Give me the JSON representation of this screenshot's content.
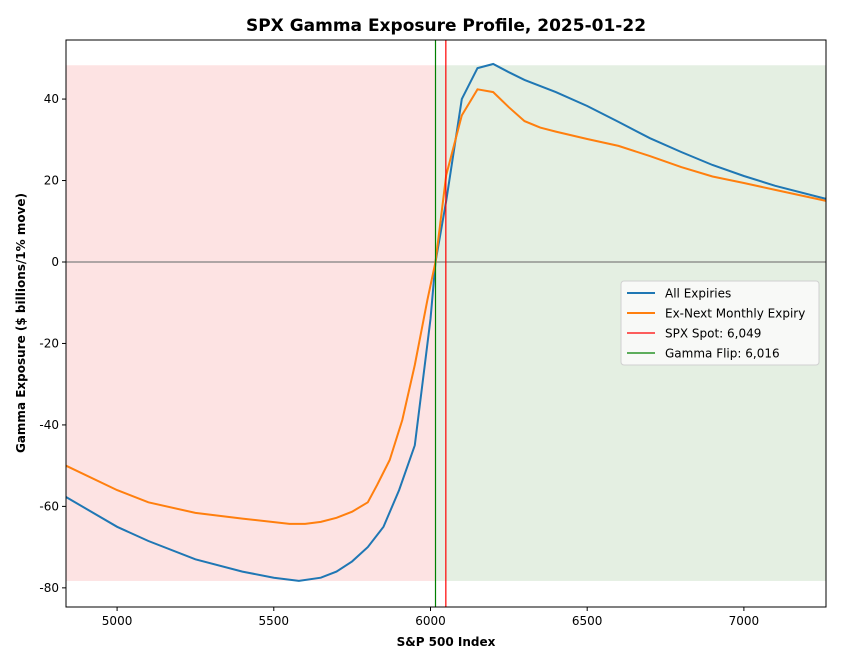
{
  "chart_data": {
    "type": "line",
    "title": "SPX Gamma Exposure Profile, 2025-01-22",
    "xlabel": "S&P 500 Index",
    "ylabel": "Gamma Exposure ($ billions/1% move)",
    "xlim": [
      4837,
      7262
    ],
    "ylim": [
      -84.7,
      54.5
    ],
    "xticks": [
      5000,
      5500,
      6000,
      6500,
      7000
    ],
    "yticks": [
      -80,
      -60,
      -40,
      -20,
      0,
      20,
      40
    ],
    "grid": false,
    "legend_position": "center-right",
    "shading": {
      "negative_region": {
        "x": [
          4837,
          6016
        ],
        "y": [
          -78.3,
          48.3
        ],
        "color": "#fde3e3"
      },
      "positive_region": {
        "x": [
          6016,
          7262
        ],
        "y": [
          -78.3,
          48.3
        ],
        "color": "#e4efe2"
      }
    },
    "series": [
      {
        "name": "All Expiries",
        "color": "#1f77b4",
        "x": [
          4837,
          5000,
          5100,
          5250,
          5400,
          5500,
          5580,
          5650,
          5700,
          5750,
          5800,
          5850,
          5900,
          5950,
          6000,
          6016,
          6050,
          6100,
          6150,
          6200,
          6250,
          6300,
          6400,
          6500,
          6600,
          6700,
          6800,
          6900,
          7000,
          7100,
          7262
        ],
        "y": [
          -57.7,
          -65,
          -68.5,
          -73,
          -76,
          -77.5,
          -78.3,
          -77.5,
          -76,
          -73.5,
          -70,
          -65,
          -56,
          -45,
          -14,
          0,
          15,
          40,
          47.6,
          48.6,
          46.6,
          44.7,
          41.7,
          38.3,
          34.4,
          30.4,
          27,
          23.8,
          21.1,
          18.7,
          15.5
        ]
      },
      {
        "name": "Ex-Next Monthly Expiry",
        "color": "#ff7f0e",
        "x": [
          4837,
          5000,
          5100,
          5250,
          5400,
          5550,
          5600,
          5650,
          5700,
          5750,
          5800,
          5830,
          5870,
          5910,
          5950,
          5990,
          6016,
          6050,
          6100,
          6150,
          6200,
          6250,
          6300,
          6350,
          6400,
          6500,
          6600,
          6700,
          6800,
          6900,
          7000,
          7100,
          7262
        ],
        "y": [
          -50,
          -56,
          -59,
          -61.6,
          -63,
          -64.3,
          -64.3,
          -63.8,
          -62.8,
          -61.3,
          -59,
          -54.7,
          -48.6,
          -38.8,
          -25.3,
          -9.3,
          0,
          21.3,
          36,
          42.4,
          41.7,
          38,
          34.6,
          33,
          32,
          30.2,
          28.5,
          26,
          23.3,
          21,
          19.4,
          17.7,
          15
        ]
      }
    ],
    "vlines": [
      {
        "name": "SPX Spot: 6,049",
        "x": 6049,
        "color": "#ff0000"
      },
      {
        "name": "Gamma Flip: 6,016",
        "x": 6016,
        "color": "#008000"
      }
    ],
    "hline": {
      "y": 0,
      "color": "#808080"
    }
  }
}
